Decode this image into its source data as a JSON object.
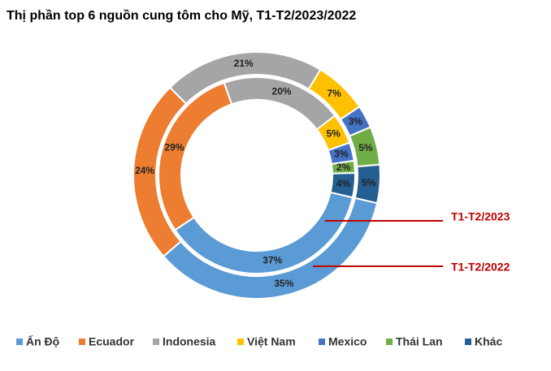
{
  "chart_data": {
    "type": "donut",
    "title": "Thị phần top 6 nguồn cung tôm cho Mỹ, T1-T2/2023/2022",
    "categories": [
      "Ấn Độ",
      "Ecuador",
      "Indonesia",
      "Việt Nam",
      "Mexico",
      "Thái Lan",
      "Khác"
    ],
    "colors": [
      "#5b9bd5",
      "#ed7d31",
      "#a5a5a5",
      "#ffc000",
      "#4472c4",
      "#70ad47",
      "#255e91"
    ],
    "series": [
      {
        "name": "T1-T2/2023",
        "values": [
          37,
          29,
          20,
          5,
          3,
          2,
          4
        ],
        "value_labels": [
          "37%",
          "29%",
          "20%",
          "5%",
          "3%",
          "2%",
          "4%"
        ]
      },
      {
        "name": "T1-T2/2022",
        "values": [
          35,
          24,
          21,
          7,
          3,
          5,
          5
        ],
        "value_labels": [
          "35%",
          "24%",
          "21%",
          "7%",
          "3%",
          "5%",
          "5%"
        ]
      }
    ],
    "legend": "bottom",
    "annotation_color": "#c00000"
  }
}
